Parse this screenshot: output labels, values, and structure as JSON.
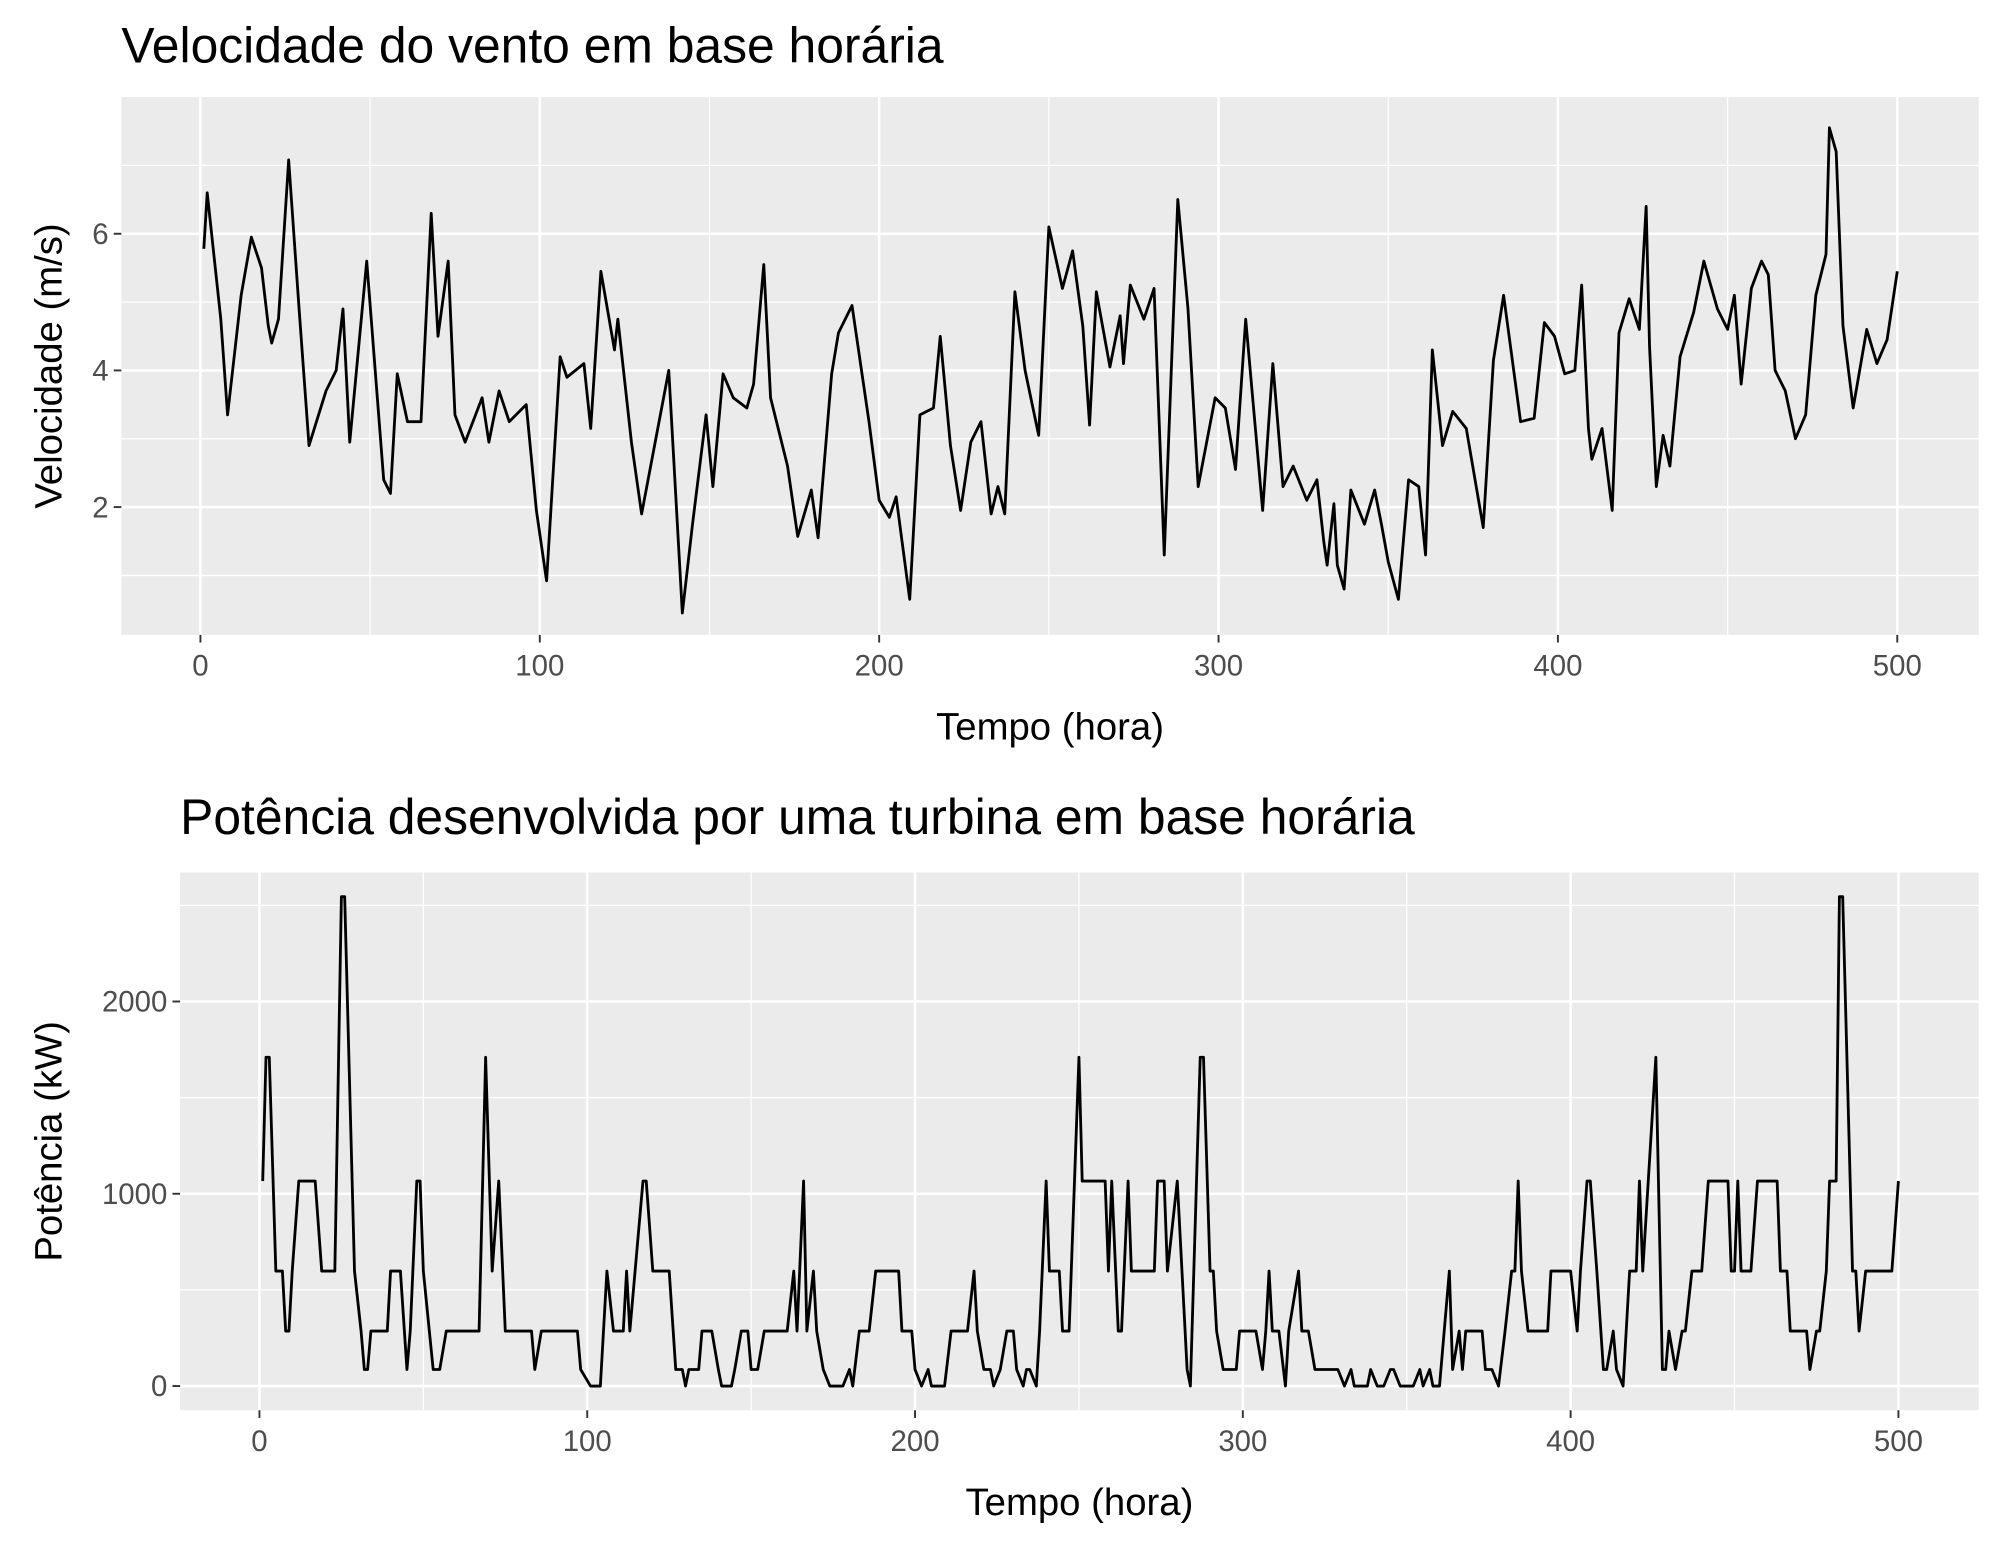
{
  "chart_data": [
    {
      "type": "line",
      "title": "Velocidade do vento em base horária",
      "xlabel": "Tempo (hora)",
      "ylabel": "Velocidade (m/s)",
      "xlim": [
        -23.3,
        524
      ],
      "ylim": [
        0.13,
        8.0
      ],
      "xticks": [
        0,
        100,
        200,
        300,
        400,
        500
      ],
      "yticks": [
        2,
        4,
        6
      ],
      "x_minor_grid": [
        50,
        150,
        250,
        350,
        450
      ],
      "y_minor_grid": [
        1,
        3,
        5,
        7
      ],
      "grid": true,
      "color": "#000000",
      "x": [
        1,
        2,
        6,
        8,
        12,
        15,
        18,
        20,
        21,
        23,
        26,
        29,
        32,
        37,
        40,
        42,
        44,
        49,
        54,
        56,
        58,
        61,
        65,
        68,
        70,
        73,
        75,
        78,
        83,
        85,
        88,
        91,
        96,
        99,
        102,
        106,
        108,
        113,
        115,
        118,
        122,
        123,
        127,
        130,
        134,
        138,
        142,
        145,
        149,
        151,
        154,
        157,
        161,
        163,
        166,
        168,
        173,
        176,
        180,
        182,
        186,
        188,
        192,
        197,
        200,
        203,
        205,
        209,
        212,
        216,
        218,
        221,
        224,
        227,
        230,
        233,
        235,
        237,
        240,
        243,
        247,
        250,
        254,
        257,
        260,
        262,
        264,
        268,
        271,
        272,
        274,
        278,
        281,
        284,
        288,
        291,
        294,
        299,
        302,
        305,
        308,
        313,
        316,
        319,
        322,
        326,
        329,
        331,
        332,
        334,
        335,
        337,
        339,
        343,
        346,
        348,
        350,
        353,
        356,
        359,
        361,
        363,
        366,
        369,
        373,
        378,
        381,
        384,
        389,
        393,
        396,
        399,
        402,
        405,
        407,
        409,
        410,
        413,
        416,
        418,
        421,
        424,
        426,
        427,
        429,
        431,
        433,
        436,
        440,
        443,
        447,
        450,
        452,
        454,
        457,
        460,
        462,
        464,
        467,
        470,
        473,
        476,
        479,
        480,
        482,
        484,
        487,
        491,
        494,
        497,
        500
      ],
      "values": [
        5.78,
        6.6,
        4.75,
        3.35,
        5.1,
        5.95,
        5.5,
        4.65,
        4.4,
        4.75,
        7.08,
        4.95,
        2.9,
        3.7,
        4.0,
        4.9,
        2.95,
        5.6,
        2.4,
        2.2,
        3.95,
        3.25,
        3.25,
        6.3,
        4.5,
        5.6,
        3.35,
        2.95,
        3.6,
        2.95,
        3.7,
        3.25,
        3.5,
        1.95,
        0.92,
        4.2,
        3.9,
        4.1,
        3.15,
        5.45,
        4.3,
        4.75,
        2.95,
        1.9,
        2.95,
        4.0,
        0.45,
        1.75,
        3.35,
        2.3,
        3.95,
        3.6,
        3.45,
        3.8,
        5.55,
        3.6,
        2.6,
        1.57,
        2.25,
        1.55,
        3.95,
        4.55,
        4.95,
        3.25,
        2.1,
        1.85,
        2.15,
        0.65,
        3.35,
        3.45,
        4.5,
        2.9,
        1.95,
        2.95,
        3.25,
        1.9,
        2.3,
        1.9,
        5.15,
        4.0,
        3.05,
        6.1,
        5.2,
        5.75,
        4.65,
        3.2,
        5.15,
        4.05,
        4.8,
        4.1,
        5.25,
        4.75,
        5.2,
        1.3,
        6.5,
        4.9,
        2.3,
        3.6,
        3.45,
        2.55,
        4.75,
        1.95,
        4.1,
        2.3,
        2.6,
        2.1,
        2.4,
        1.5,
        1.15,
        2.05,
        1.15,
        0.8,
        2.25,
        1.75,
        2.25,
        1.75,
        1.2,
        0.65,
        2.4,
        2.3,
        1.3,
        4.3,
        2.9,
        3.4,
        3.15,
        1.7,
        4.15,
        5.1,
        3.25,
        3.3,
        4.7,
        4.5,
        3.95,
        4.0,
        5.25,
        3.15,
        2.7,
        3.15,
        1.95,
        4.55,
        5.05,
        4.6,
        6.4,
        4.35,
        2.3,
        3.05,
        2.6,
        4.2,
        4.85,
        5.6,
        4.9,
        4.6,
        5.1,
        3.8,
        5.2,
        5.6,
        5.4,
        4.0,
        3.7,
        3.0,
        3.35,
        5.1,
        5.7,
        7.55,
        7.2,
        4.65,
        3.45,
        4.6,
        4.1,
        4.45,
        5.45
      ]
    },
    {
      "type": "line",
      "title": "Potência desenvolvida por uma turbina em base horária",
      "xlabel": "Tempo (hora)",
      "ylabel": "Potência (kW)",
      "xlim": [
        -24.2,
        524.5
      ],
      "ylim": [
        -126,
        2671
      ],
      "xticks": [
        0,
        100,
        200,
        300,
        400,
        500
      ],
      "yticks": [
        0,
        1000,
        2000
      ],
      "x_minor_grid": [
        50,
        150,
        250,
        350,
        450
      ],
      "y_minor_grid": [
        500,
        1500,
        2500
      ],
      "grid": true,
      "color": "#000000",
      "x": [
        1,
        2,
        3,
        5,
        7,
        8,
        9,
        10,
        12,
        17,
        19,
        23,
        25,
        26,
        29,
        31,
        32,
        33,
        34,
        39,
        40,
        43,
        45,
        46,
        48,
        49,
        50,
        53,
        55,
        57,
        67,
        69,
        71,
        73,
        75,
        83,
        84,
        86,
        97,
        98,
        101,
        104,
        106,
        108,
        111,
        112,
        113,
        117,
        118,
        120,
        125,
        127,
        129,
        130,
        131,
        134,
        135,
        138,
        140,
        141,
        144,
        145,
        147,
        149,
        150,
        152,
        154,
        161,
        163,
        164,
        166,
        167,
        169,
        170,
        172,
        174,
        178,
        180,
        181,
        183,
        186,
        188,
        195,
        196,
        199,
        200,
        202,
        204,
        205,
        209,
        211,
        216,
        218,
        219,
        221,
        223,
        224,
        226,
        228,
        230,
        231,
        233,
        234,
        235,
        237,
        238,
        240,
        241,
        244,
        245,
        247,
        250,
        251,
        258,
        259,
        260,
        262,
        263,
        265,
        266,
        273,
        274,
        276,
        277,
        280,
        283,
        284,
        287,
        288,
        290,
        291,
        292,
        294,
        298,
        299,
        304,
        306,
        307,
        308,
        309,
        311,
        313,
        314,
        317,
        318,
        320,
        322,
        329,
        331,
        333,
        334,
        338,
        339,
        341,
        343,
        345,
        346,
        348,
        352,
        354,
        355,
        357,
        358,
        360,
        363,
        364,
        366,
        367,
        368,
        373,
        374,
        376,
        378,
        380,
        382,
        383,
        384,
        385,
        387,
        393,
        394,
        400,
        402,
        403,
        405,
        406,
        408,
        410,
        411,
        413,
        414,
        416,
        418,
        420,
        421,
        422,
        426,
        428,
        429,
        430,
        432,
        434,
        435,
        437,
        440,
        442,
        448,
        449,
        450,
        451,
        452,
        455,
        457,
        463,
        464,
        466,
        467,
        472,
        473,
        475,
        476,
        478,
        479,
        481,
        482,
        483,
        486,
        487,
        488,
        490,
        498,
        500
      ],
      "values": [
        1066,
        1710,
        1710,
        598,
        598,
        286,
        286,
        598,
        1066,
        1066,
        598,
        598,
        2545,
        2545,
        598,
        286,
        86,
        86,
        286,
        286,
        598,
        598,
        86,
        286,
        1066,
        1066,
        598,
        86,
        86,
        286,
        286,
        1710,
        598,
        1066,
        286,
        286,
        86,
        286,
        286,
        86,
        0,
        0,
        598,
        286,
        286,
        598,
        286,
        1066,
        1066,
        598,
        598,
        86,
        86,
        0,
        86,
        86,
        286,
        286,
        86,
        0,
        0,
        86,
        286,
        286,
        86,
        86,
        286,
        286,
        598,
        286,
        1066,
        286,
        598,
        286,
        86,
        0,
        0,
        86,
        0,
        286,
        286,
        598,
        598,
        286,
        286,
        86,
        0,
        86,
        0,
        0,
        286,
        286,
        598,
        286,
        86,
        86,
        0,
        86,
        286,
        286,
        86,
        0,
        86,
        86,
        0,
        286,
        1066,
        598,
        598,
        286,
        286,
        1710,
        1066,
        1066,
        598,
        1066,
        286,
        286,
        1066,
        598,
        598,
        1066,
        1066,
        598,
        1066,
        86,
        0,
        1710,
        1710,
        598,
        598,
        286,
        86,
        86,
        286,
        286,
        86,
        286,
        598,
        286,
        286,
        0,
        286,
        598,
        286,
        286,
        86,
        86,
        0,
        86,
        0,
        0,
        86,
        0,
        0,
        86,
        86,
        0,
        0,
        86,
        0,
        86,
        0,
        0,
        598,
        86,
        286,
        86,
        286,
        286,
        86,
        86,
        0,
        286,
        598,
        598,
        1066,
        598,
        286,
        286,
        598,
        598,
        286,
        598,
        1066,
        1066,
        598,
        86,
        86,
        286,
        86,
        0,
        598,
        598,
        1066,
        598,
        1710,
        86,
        86,
        286,
        86,
        286,
        286,
        598,
        598,
        1066,
        1066,
        598,
        598,
        1066,
        598,
        598,
        1066,
        1066,
        598,
        598,
        286,
        286,
        86,
        286,
        286,
        598,
        1066,
        1066,
        2545,
        2545,
        598,
        598,
        286,
        598,
        598,
        1066
      ]
    }
  ]
}
